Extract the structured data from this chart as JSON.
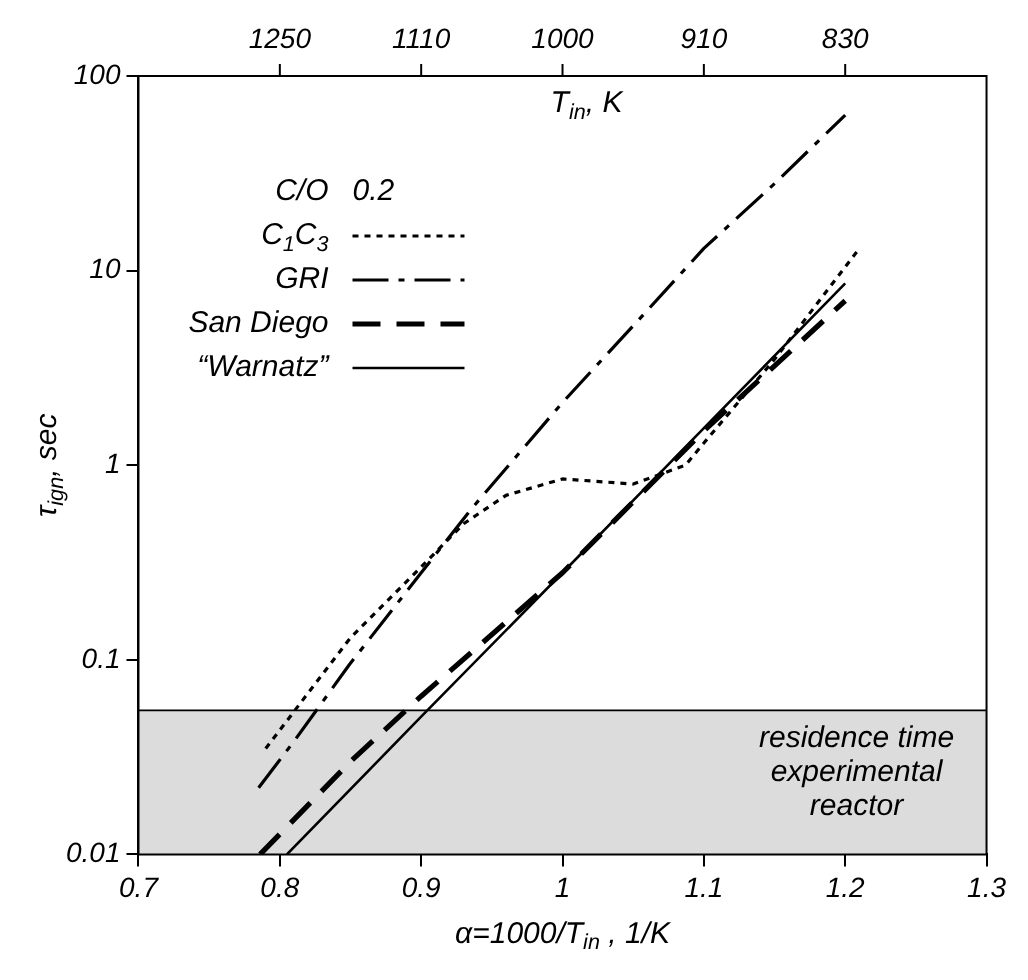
{
  "chart_data": {
    "type": "line",
    "xlabel": "α=1000/T$_{in}$ , 1/K",
    "ylabel": "τ$_{ign}$, sec",
    "x2label": "T$_{in}$, K",
    "legend_title": "C/O  0.2",
    "legend": "top left",
    "grid": false,
    "log": "y",
    "xlim": [
      0.7,
      1.3
    ],
    "xticks": [
      0.7,
      0.8,
      0.9,
      1,
      1.1,
      1.2,
      1.3
    ],
    "annotations": [
      "1250",
      "1110",
      "1000",
      "910",
      "830"
    ],
    "ref_lines": [
      {
        "axis": "y",
        "value": 0.055,
        "color": "#000000"
      }
    ],
    "ylim": [
      0.01,
      100
    ],
    "yticks": [
      0.01,
      0.1,
      1,
      10,
      100
    ],
    "bands": [
      {
        "axis": "y",
        "from": 0.01,
        "to": 0.055,
        "label": "residence time\nexperimental\nreactor",
        "color": "#dcdcdc"
      }
    ],
    "series": [
      {
        "name": "C$_{1}$C$_{3}$",
        "color": "#000000",
        "line_style": "dotted",
        "x": [
          0.79,
          0.85,
          0.9,
          0.93,
          0.96,
          1.0,
          1.05,
          1.087,
          1.1,
          1.15,
          1.21
        ],
        "values": [
          0.035,
          0.13,
          0.3,
          0.5,
          0.7,
          0.85,
          0.8,
          1.0,
          1.3,
          3.5,
          13
        ]
      },
      {
        "name": "GRI",
        "color": "#000000",
        "line_style": "dashdot",
        "x": [
          0.785,
          0.811,
          0.849,
          0.9,
          0.935,
          1.0,
          1.05,
          1.1,
          1.15,
          1.2
        ],
        "values": [
          0.022,
          0.039,
          0.094,
          0.28,
          0.59,
          2.1,
          5.2,
          13,
          28,
          63
        ]
      },
      {
        "name": "San Diego",
        "color": "#000000",
        "line_style": "dashed",
        "x": [
          0.786,
          0.85,
          0.9,
          1.0,
          1.1,
          1.2
        ],
        "values": [
          0.01,
          0.03,
          0.065,
          0.28,
          1.5,
          7
        ]
      },
      {
        "name": "“Warnatz”",
        "color": "#000000",
        "line_style": "solid",
        "x": [
          0.805,
          0.9,
          1.0,
          1.1,
          1.2
        ],
        "values": [
          0.01,
          0.051,
          0.28,
          1.55,
          8.6
        ]
      }
    ]
  }
}
